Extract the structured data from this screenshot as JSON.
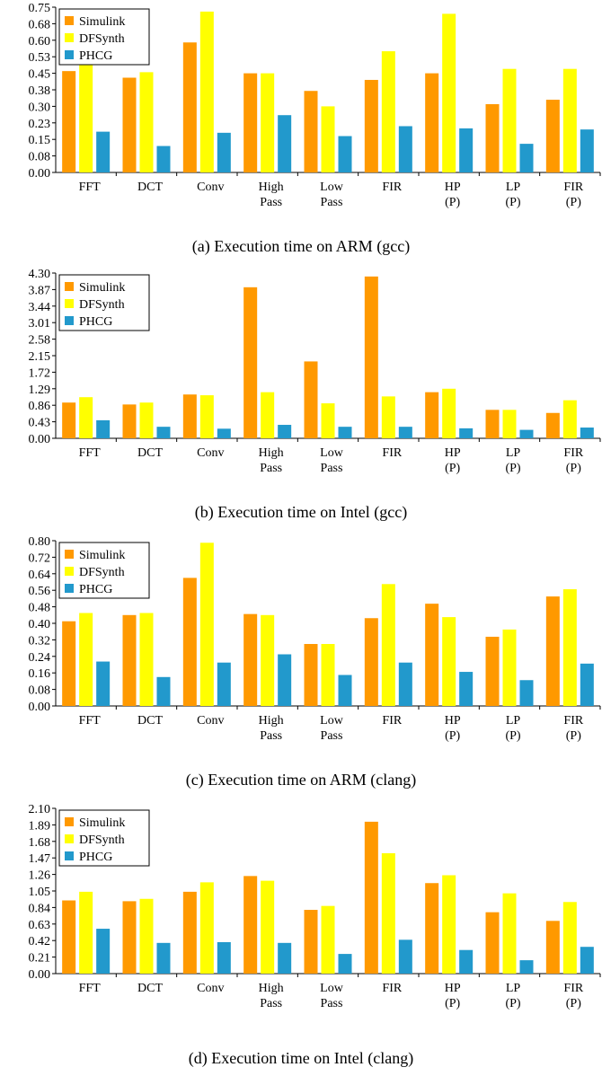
{
  "colors": {
    "Simulink": "#ff9900",
    "DFSynth": "#ffff00",
    "PHCG": "#2299cc"
  },
  "chart_data": [
    {
      "type": "bar",
      "title": "(a) Execution time on ARM (gcc)",
      "categories": [
        [
          "FFT"
        ],
        [
          "DCT"
        ],
        [
          "Conv"
        ],
        [
          "High",
          "Pass"
        ],
        [
          "Low",
          "Pass"
        ],
        [
          "FIR"
        ],
        [
          "HP",
          "(P)"
        ],
        [
          "LP",
          "(P)"
        ],
        [
          "FIR",
          "(P)"
        ]
      ],
      "yticks": [
        "0.00",
        "0.08",
        "0.15",
        "0.23",
        "0.30",
        "0.38",
        "0.45",
        "0.53",
        "0.60",
        "0.68",
        "0.75"
      ],
      "ylim": [
        0,
        0.75
      ],
      "legend": "top-left",
      "series": [
        {
          "name": "Simulink",
          "values": [
            0.46,
            0.43,
            0.59,
            0.45,
            0.37,
            0.42,
            0.45,
            0.31,
            0.33
          ]
        },
        {
          "name": "DFSynth",
          "values": [
            0.51,
            0.455,
            0.73,
            0.45,
            0.3,
            0.55,
            0.72,
            0.47,
            0.47
          ]
        },
        {
          "name": "PHCG",
          "values": [
            0.185,
            0.12,
            0.18,
            0.26,
            0.165,
            0.21,
            0.2,
            0.13,
            0.195
          ]
        }
      ]
    },
    {
      "type": "bar",
      "title": "(b) Execution time on Intel (gcc)",
      "categories": [
        [
          "FFT"
        ],
        [
          "DCT"
        ],
        [
          "Conv"
        ],
        [
          "High",
          "Pass"
        ],
        [
          "Low",
          "Pass"
        ],
        [
          "FIR"
        ],
        [
          "HP",
          "(P)"
        ],
        [
          "LP",
          "(P)"
        ],
        [
          "FIR",
          "(P)"
        ]
      ],
      "yticks": [
        "0.00",
        "0.43",
        "0.86",
        "1.29",
        "1.72",
        "2.15",
        "2.58",
        "3.01",
        "3.44",
        "3.87",
        "4.30"
      ],
      "ylim": [
        0,
        4.3
      ],
      "legend": "top-left",
      "series": [
        {
          "name": "Simulink",
          "values": [
            0.93,
            0.88,
            1.14,
            3.93,
            2.0,
            4.21,
            1.2,
            0.74,
            0.66
          ]
        },
        {
          "name": "DFSynth",
          "values": [
            1.07,
            0.93,
            1.12,
            1.2,
            0.91,
            1.09,
            1.29,
            0.74,
            0.99
          ]
        },
        {
          "name": "PHCG",
          "values": [
            0.47,
            0.3,
            0.25,
            0.35,
            0.3,
            0.3,
            0.26,
            0.22,
            0.28
          ]
        }
      ]
    },
    {
      "type": "bar",
      "title": "(c) Execution time on ARM (clang)",
      "categories": [
        [
          "FFT"
        ],
        [
          "DCT"
        ],
        [
          "Conv"
        ],
        [
          "High",
          "Pass"
        ],
        [
          "Low",
          "Pass"
        ],
        [
          "FIR"
        ],
        [
          "HP",
          "(P)"
        ],
        [
          "LP",
          "(P)"
        ],
        [
          "FIR",
          "(P)"
        ]
      ],
      "yticks": [
        "0.00",
        "0.08",
        "0.16",
        "0.24",
        "0.32",
        "0.40",
        "0.48",
        "0.56",
        "0.64",
        "0.72",
        "0.80"
      ],
      "ylim": [
        0,
        0.8
      ],
      "legend": "top-left",
      "series": [
        {
          "name": "Simulink",
          "values": [
            0.41,
            0.44,
            0.62,
            0.445,
            0.3,
            0.425,
            0.495,
            0.335,
            0.53
          ]
        },
        {
          "name": "DFSynth",
          "values": [
            0.45,
            0.45,
            0.79,
            0.44,
            0.3,
            0.59,
            0.43,
            0.37,
            0.565
          ]
        },
        {
          "name": "PHCG",
          "values": [
            0.215,
            0.14,
            0.21,
            0.25,
            0.15,
            0.21,
            0.165,
            0.125,
            0.205
          ]
        }
      ]
    },
    {
      "type": "bar",
      "title": "(d) Execution time on Intel (clang)",
      "categories": [
        [
          "FFT"
        ],
        [
          "DCT"
        ],
        [
          "Conv"
        ],
        [
          "High",
          "Pass"
        ],
        [
          "Low",
          "Pass"
        ],
        [
          "FIR"
        ],
        [
          "HP",
          "(P)"
        ],
        [
          "LP",
          "(P)"
        ],
        [
          "FIR",
          "(P)"
        ]
      ],
      "yticks": [
        "0.00",
        "0.21",
        "0.42",
        "0.63",
        "0.84",
        "1.05",
        "1.26",
        "1.47",
        "1.68",
        "1.89",
        "2.10"
      ],
      "ylim": [
        0,
        2.1
      ],
      "legend": "top-left",
      "series": [
        {
          "name": "Simulink",
          "values": [
            0.93,
            0.92,
            1.04,
            1.24,
            0.81,
            1.93,
            1.15,
            0.78,
            0.67
          ]
        },
        {
          "name": "DFSynth",
          "values": [
            1.04,
            0.95,
            1.16,
            1.18,
            0.86,
            1.53,
            1.25,
            1.02,
            0.91
          ]
        },
        {
          "name": "PHCG",
          "values": [
            0.57,
            0.39,
            0.4,
            0.39,
            0.25,
            0.43,
            0.3,
            0.17,
            0.34
          ]
        }
      ]
    }
  ]
}
